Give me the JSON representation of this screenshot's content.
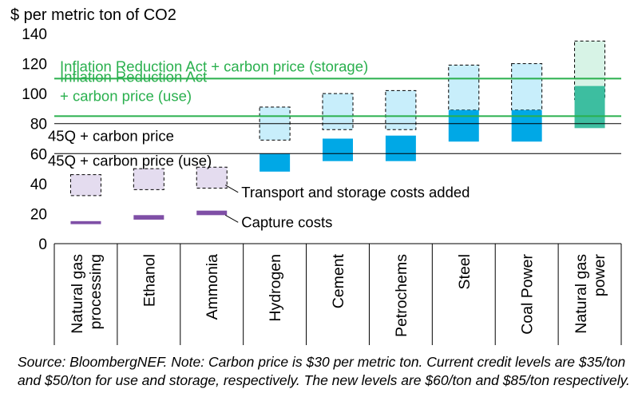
{
  "chart_data": {
    "type": "bar",
    "ylabel": "$ per metric ton of CO2",
    "ylim": [
      0,
      140
    ],
    "yticks": [
      0,
      20,
      40,
      60,
      80,
      100,
      120,
      140
    ],
    "categories": [
      [
        "Natural gas",
        "processing"
      ],
      [
        "Ethanol"
      ],
      [
        "Ammonia"
      ],
      [
        "Hydrogen"
      ],
      [
        "Cement"
      ],
      [
        "Petrochems"
      ],
      [
        "Steel"
      ],
      [
        "Coal Power"
      ],
      [
        "Natural gas",
        "power"
      ]
    ],
    "series": [
      {
        "name": "Capture costs",
        "ranges": [
          [
            13,
            15
          ],
          [
            16,
            19
          ],
          [
            19,
            22
          ],
          [
            48,
            60
          ],
          [
            55,
            70
          ],
          [
            55,
            72
          ],
          [
            68,
            89
          ],
          [
            68,
            89
          ],
          [
            77,
            105
          ]
        ],
        "colors": [
          "#7f4fa6",
          "#7f4fa6",
          "#7f4fa6",
          "#00a8e6",
          "#00a8e6",
          "#00a8e6",
          "#00a8e6",
          "#00a8e6",
          "#3dbea0"
        ]
      },
      {
        "name": "Transport and storage costs added",
        "ranges": [
          [
            32,
            46
          ],
          [
            36,
            50
          ],
          [
            37,
            51
          ],
          [
            69,
            91
          ],
          [
            76,
            100
          ],
          [
            76,
            102
          ],
          [
            89,
            119
          ],
          [
            89,
            120
          ],
          [
            96,
            135
          ]
        ],
        "colors": [
          "#e4dcef",
          "#e4dcef",
          "#e4dcef",
          "#c8eefb",
          "#c8eefb",
          "#c8eefb",
          "#c8eefb",
          "#c8eefb",
          "#d7f3e6"
        ]
      }
    ],
    "overlap_color": "#3dbea0",
    "reference_lines": [
      {
        "value": 110,
        "label": "Inflation Reduction Act + carbon price (storage)",
        "color": "#2ab04e"
      },
      {
        "value": 85,
        "label_lines": [
          "Inflation Reduction Act",
          "+ carbon price (use)"
        ],
        "color": "#2ab04e"
      },
      {
        "value": 80,
        "label": "45Q + carbon price",
        "color": "#000000"
      },
      {
        "value": 60,
        "label": "45Q + carbon price (use)",
        "color": "#000000"
      }
    ],
    "annotations": [
      {
        "text": "Transport and storage costs added",
        "target_category": 2,
        "target_value": 39,
        "text_value": 31
      },
      {
        "text": "Capture costs",
        "target_category": 2,
        "target_value": 19,
        "text_value": 11
      }
    ]
  },
  "source_note": "Source: BloombergNEF. Note: Carbon price is $30 per metric ton. Current credit levels are $35/ton and $50/ton for use and storage, respectively. The new levels are $60/ton and $85/ton respectively."
}
